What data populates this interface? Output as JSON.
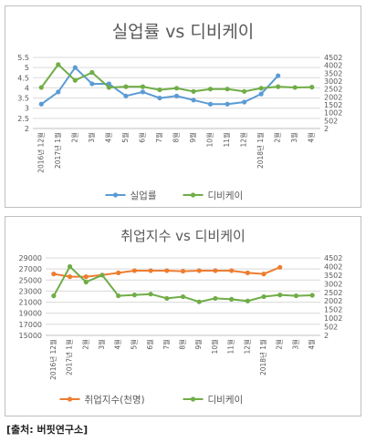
{
  "chart_data": [
    {
      "type": "line",
      "title": "실업률 vs 디비케이",
      "categories": [
        "2016년 12월",
        "2017년 1월",
        "2월",
        "3월",
        "4월",
        "5월",
        "6월",
        "7월",
        "8월",
        "9월",
        "10월",
        "11월",
        "12월",
        "2018년 1월",
        "2월",
        "3월",
        "4월"
      ],
      "left_axis": {
        "min": 2,
        "max": 5.5,
        "ticks": [
          "2",
          "2.5",
          "3",
          "3.5",
          "4",
          "4.5",
          "5",
          "5.5"
        ]
      },
      "right_axis": {
        "min": 2,
        "max": 4502,
        "ticks": [
          "2",
          "502",
          "1002",
          "1502",
          "2002",
          "2502",
          "3002",
          "3502",
          "4002",
          "4502"
        ]
      },
      "grid": true,
      "legend_position": "bottom",
      "series": [
        {
          "name": "실업률",
          "color": "#5b9bd5",
          "axis": "left",
          "values": [
            3.2,
            3.8,
            5.0,
            4.2,
            4.2,
            3.6,
            3.8,
            3.5,
            3.6,
            3.4,
            3.2,
            3.2,
            3.3,
            3.7,
            4.6,
            null,
            null
          ]
        },
        {
          "name": "디비케이",
          "color": "#70ad47",
          "axis": "right",
          "values": [
            2600,
            4050,
            3050,
            3550,
            2600,
            2650,
            2650,
            2450,
            2550,
            2350,
            2500,
            2500,
            2350,
            2550,
            2650,
            2600,
            2620
          ]
        }
      ]
    },
    {
      "type": "line",
      "title": "취업지수 vs 디비케이",
      "categories": [
        "2016년 12월",
        "2017년 1월",
        "2월",
        "3월",
        "4월",
        "5월",
        "6월",
        "7월",
        "8월",
        "9월",
        "10월",
        "11월",
        "12월",
        "2018년 1월",
        "2월",
        "3월",
        "4월"
      ],
      "left_axis": {
        "min": 15000,
        "max": 29000,
        "ticks": [
          "15000",
          "17000",
          "19000",
          "21000",
          "23000",
          "25000",
          "27000",
          "29000"
        ]
      },
      "right_axis": {
        "min": 2,
        "max": 4502,
        "ticks": [
          "2",
          "502",
          "1002",
          "1502",
          "2002",
          "2502",
          "3002",
          "3502",
          "4002",
          "4502"
        ]
      },
      "grid": true,
      "legend_position": "bottom",
      "series": [
        {
          "name": "취업지수(천명)",
          "color": "#ed7d31",
          "axis": "left",
          "values": [
            26100,
            25600,
            25600,
            25900,
            26300,
            26700,
            26700,
            26700,
            26600,
            26700,
            26700,
            26700,
            26300,
            26100,
            27300,
            null,
            null
          ]
        },
        {
          "name": "디비케이",
          "color": "#70ad47",
          "axis": "right",
          "values": [
            2300,
            4000,
            3100,
            3500,
            2300,
            2350,
            2400,
            2150,
            2250,
            1950,
            2150,
            2100,
            2000,
            2250,
            2350,
            2300,
            2330
          ]
        }
      ]
    }
  ],
  "source": "[출처: 버핏연구소]"
}
